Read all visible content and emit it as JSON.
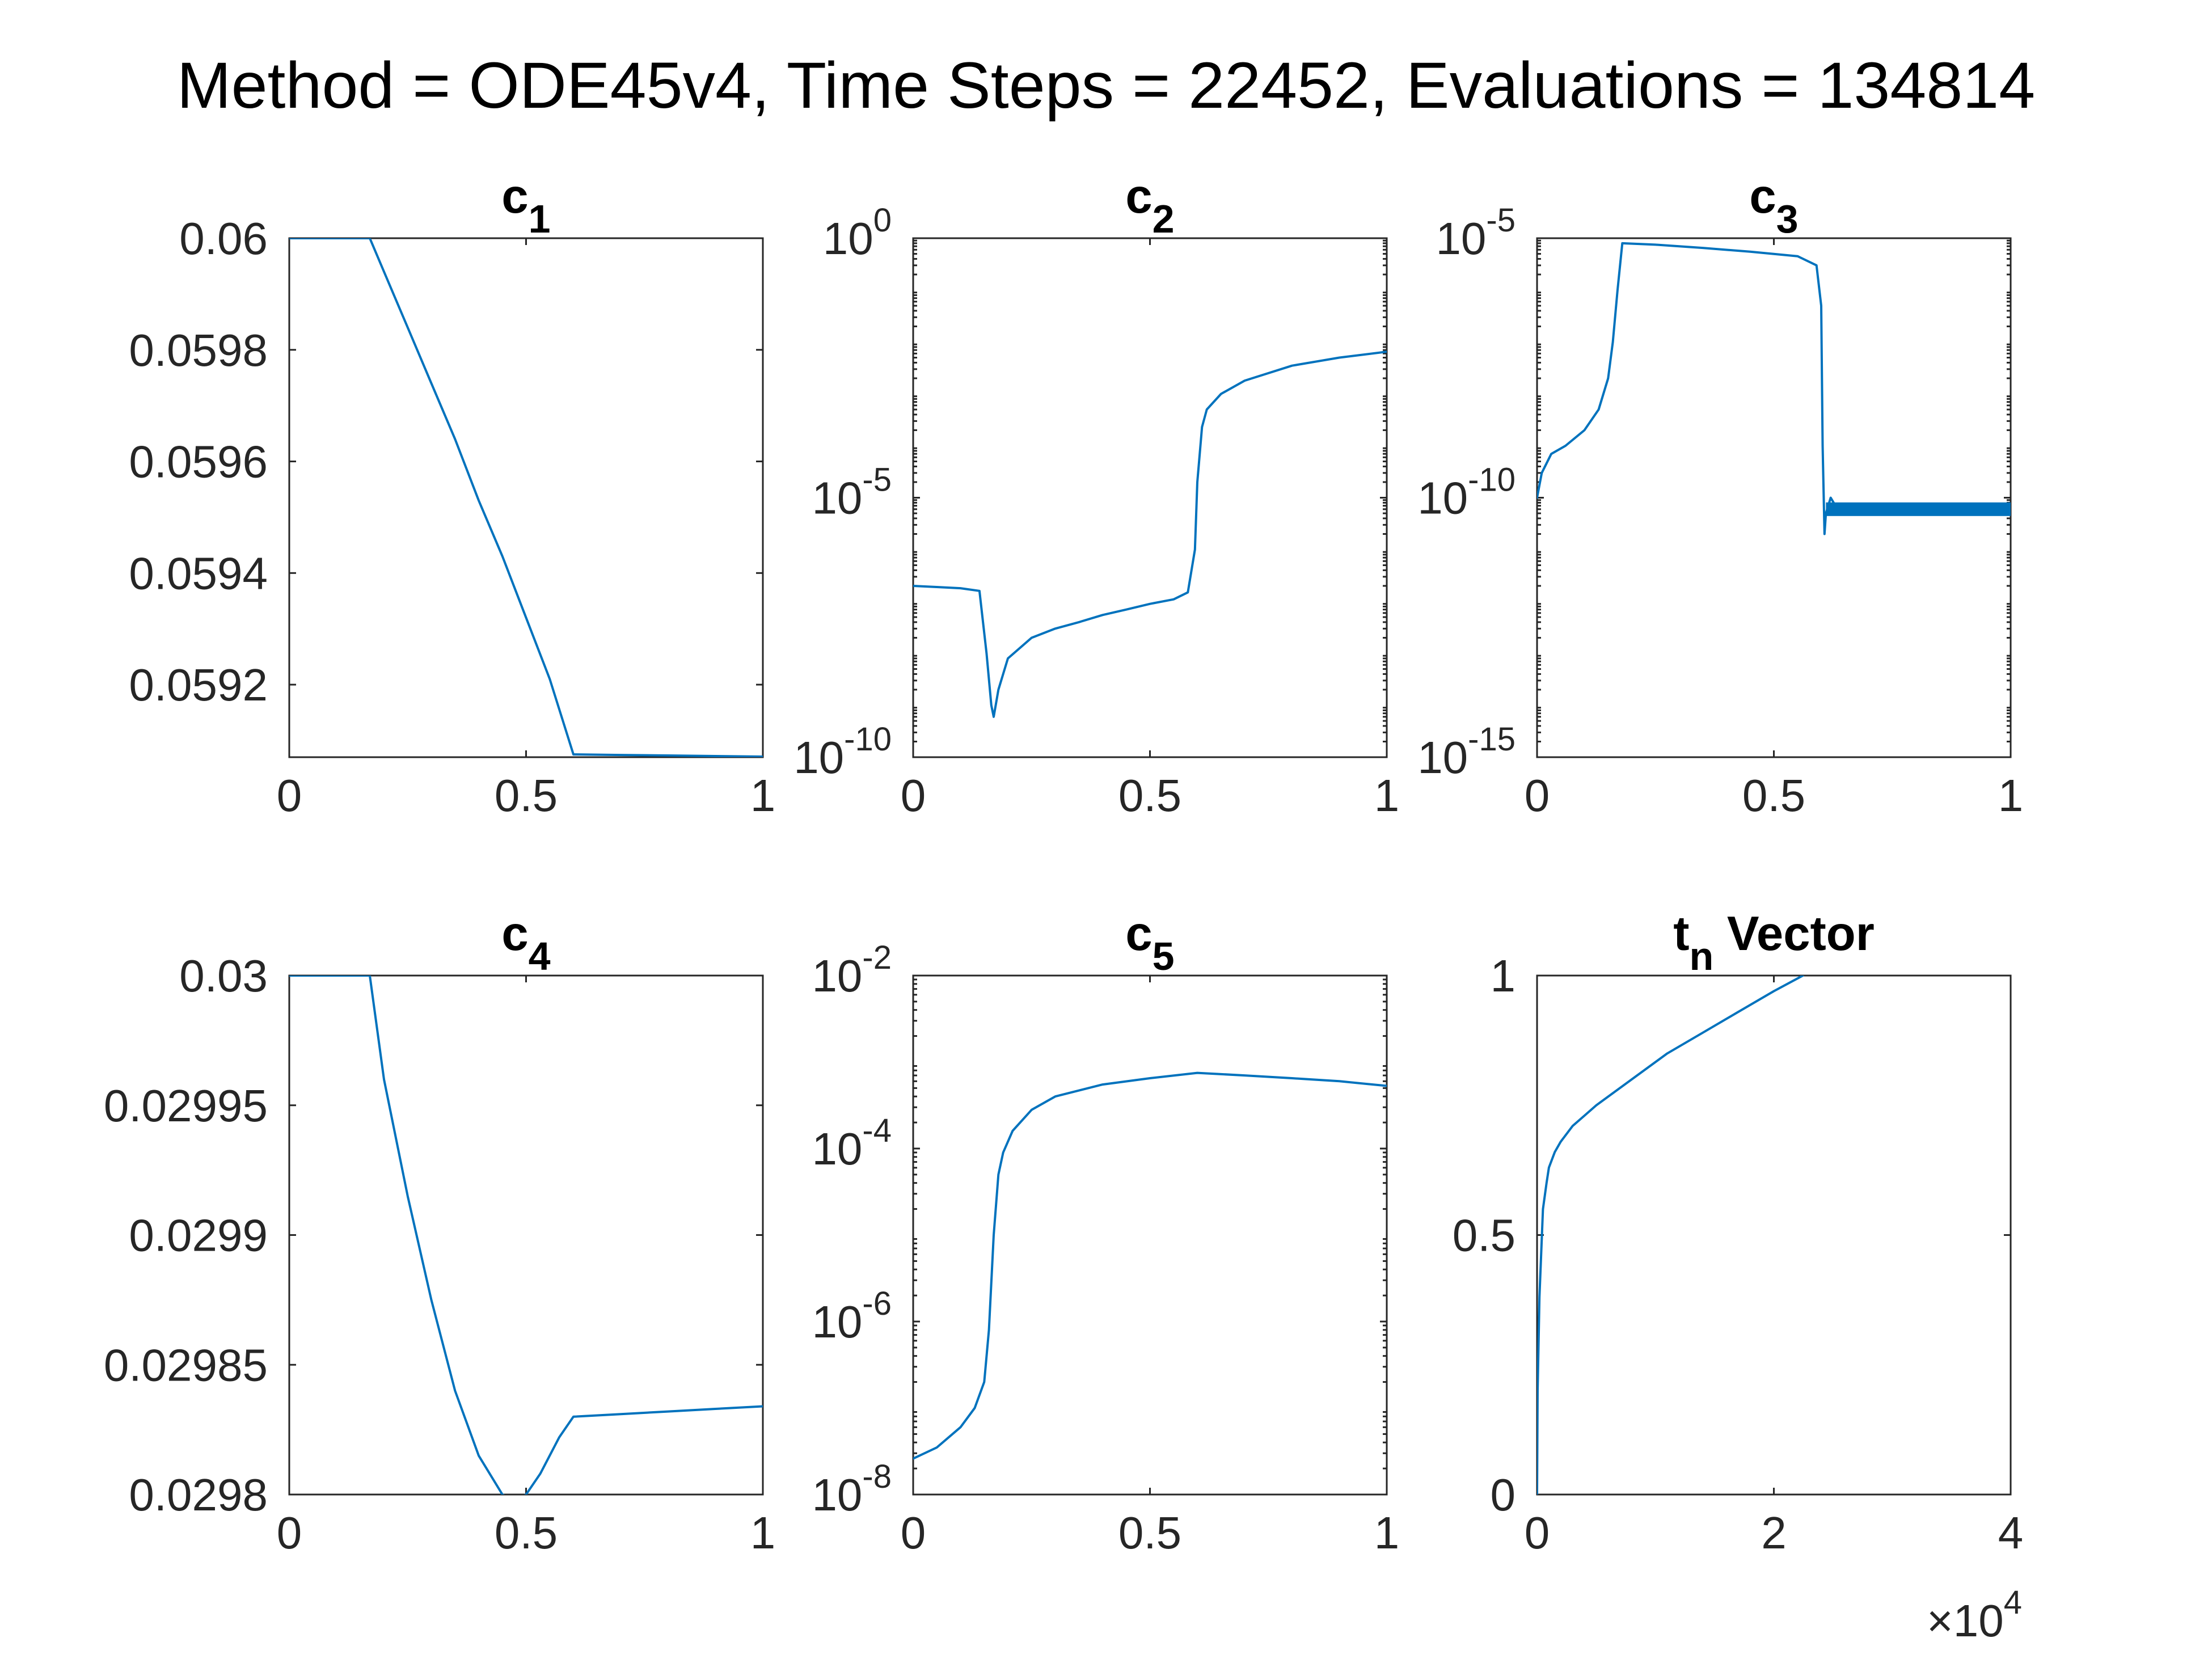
{
  "figure_title": "Method = ODE45v4, Time Steps = 22452, Evaluations = 134814",
  "line_color": "#0072BD",
  "chart_data": [
    {
      "type": "line",
      "title": {
        "main": "c",
        "sub": "1",
        "rest": ""
      },
      "x_scale": "linear",
      "y_scale": "linear",
      "xlim": [
        0,
        1
      ],
      "ylim": [
        0.05907,
        0.06
      ],
      "x_ticks": [
        {
          "v": 0,
          "label": "0"
        },
        {
          "v": 0.5,
          "label": "0.5"
        },
        {
          "v": 1,
          "label": "1"
        }
      ],
      "y_ticks": [
        {
          "v": 0.06,
          "label": "0.06"
        },
        {
          "v": 0.0598,
          "label": "0.0598"
        },
        {
          "v": 0.0596,
          "label": "0.0596"
        },
        {
          "v": 0.0594,
          "label": "0.0594"
        },
        {
          "v": 0.0592,
          "label": "0.0592"
        }
      ],
      "x_multiplier": null,
      "series": [
        {
          "x": [
            0,
            0.17,
            0.2,
            0.25,
            0.3,
            0.35,
            0.4,
            0.45,
            0.5,
            0.55,
            0.6,
            0.7,
            0.8,
            0.9,
            1.0
          ],
          "y": [
            0.06,
            0.06,
            0.05994,
            0.05984,
            0.05974,
            0.05964,
            0.05953,
            0.05943,
            0.05932,
            0.05921,
            0.059075,
            0.059074,
            0.059073,
            0.059072,
            0.059071
          ]
        }
      ]
    },
    {
      "type": "line",
      "title": {
        "main": "c",
        "sub": "2",
        "rest": ""
      },
      "x_scale": "linear",
      "y_scale": "log",
      "xlim": [
        0,
        1
      ],
      "ylim": [
        1e-10,
        1
      ],
      "x_ticks": [
        {
          "v": 0,
          "label": "0"
        },
        {
          "v": 0.5,
          "label": "0.5"
        },
        {
          "v": 1,
          "label": "1"
        }
      ],
      "y_ticks": [
        {
          "v": 1,
          "label": "10",
          "exp": "0"
        },
        {
          "v": 1e-05,
          "label": "10",
          "exp": "-5"
        },
        {
          "v": 1e-10,
          "label": "10",
          "exp": "-10"
        }
      ],
      "x_multiplier": null,
      "series": [
        {
          "x": [
            0,
            0.05,
            0.1,
            0.14,
            0.155,
            0.165,
            0.17,
            0.18,
            0.2,
            0.25,
            0.3,
            0.35,
            0.4,
            0.45,
            0.5,
            0.55,
            0.58,
            0.595,
            0.6,
            0.61,
            0.62,
            0.65,
            0.7,
            0.8,
            0.9,
            1.0
          ],
          "y": [
            2e-07,
            1.9e-07,
            1.8e-07,
            1.6e-07,
            1e-08,
            1e-09,
            6e-10,
            2e-09,
            8e-09,
            2e-08,
            3e-08,
            4e-08,
            5.5e-08,
            7e-08,
            9e-08,
            1.1e-07,
            1.5e-07,
            1e-06,
            2e-05,
            0.00023,
            0.0005,
            0.001,
            0.0018,
            0.0035,
            0.005,
            0.0065
          ]
        }
      ]
    },
    {
      "type": "line",
      "title": {
        "main": "c",
        "sub": "3",
        "rest": ""
      },
      "x_scale": "linear",
      "y_scale": "log",
      "xlim": [
        0,
        1
      ],
      "ylim": [
        1e-15,
        1e-05
      ],
      "x_ticks": [
        {
          "v": 0,
          "label": "0"
        },
        {
          "v": 0.5,
          "label": "0.5"
        },
        {
          "v": 1,
          "label": "1"
        }
      ],
      "y_ticks": [
        {
          "v": 1e-05,
          "label": "10",
          "exp": "-5"
        },
        {
          "v": 1e-10,
          "label": "10",
          "exp": "-10"
        },
        {
          "v": 1e-15,
          "label": "10",
          "exp": "-15"
        }
      ],
      "x_multiplier": null,
      "series": [
        {
          "x": [
            0,
            0.01,
            0.03,
            0.06,
            0.1,
            0.13,
            0.15,
            0.16,
            0.17,
            0.18,
            0.25,
            0.35,
            0.45,
            0.55,
            0.59,
            0.6,
            0.603,
            0.607,
            0.61,
            0.62,
            0.63,
            0.65,
            0.7,
            0.8,
            0.9,
            1.0
          ],
          "y": [
            1e-10,
            3e-10,
            7e-10,
            1e-09,
            2e-09,
            5e-09,
            2e-08,
            1e-07,
            1e-06,
            8e-06,
            7.5e-06,
            6.5e-06,
            5.5e-06,
            4.5e-06,
            3e-06,
            5e-07,
            1e-09,
            2e-11,
            5e-11,
            1e-10,
            7e-11,
            6e-11,
            6e-11,
            6e-11,
            6e-11,
            6e-11
          ]
        }
      ]
    },
    {
      "type": "line",
      "title": {
        "main": "c",
        "sub": "4",
        "rest": ""
      },
      "x_scale": "linear",
      "y_scale": "linear",
      "xlim": [
        0,
        1
      ],
      "ylim": [
        0.0298,
        0.03
      ],
      "x_ticks": [
        {
          "v": 0,
          "label": "0"
        },
        {
          "v": 0.5,
          "label": "0.5"
        },
        {
          "v": 1,
          "label": "1"
        }
      ],
      "y_ticks": [
        {
          "v": 0.03,
          "label": "0.03"
        },
        {
          "v": 0.02995,
          "label": "0.02995"
        },
        {
          "v": 0.0299,
          "label": "0.0299"
        },
        {
          "v": 0.02985,
          "label": "0.02985"
        },
        {
          "v": 0.0298,
          "label": "0.0298"
        }
      ],
      "x_multiplier": null,
      "series": [
        {
          "x": [
            0,
            0.17,
            0.2,
            0.25,
            0.3,
            0.35,
            0.4,
            0.45,
            0.48,
            0.5,
            0.53,
            0.57,
            0.6,
            0.7,
            0.8,
            0.9,
            1.0
          ],
          "y": [
            0.03,
            0.03,
            0.02996,
            0.029915,
            0.029875,
            0.02984,
            0.029815,
            0.0298,
            0.029797,
            0.0298,
            0.029808,
            0.029822,
            0.02983,
            0.029831,
            0.029832,
            0.029833,
            0.029834
          ]
        }
      ]
    },
    {
      "type": "line",
      "title": {
        "main": "c",
        "sub": "5",
        "rest": ""
      },
      "x_scale": "linear",
      "y_scale": "log",
      "xlim": [
        0,
        1
      ],
      "ylim": [
        1e-08,
        0.01
      ],
      "x_ticks": [
        {
          "v": 0,
          "label": "0"
        },
        {
          "v": 0.5,
          "label": "0.5"
        },
        {
          "v": 1,
          "label": "1"
        }
      ],
      "y_ticks": [
        {
          "v": 0.01,
          "label": "10",
          "exp": "-2"
        },
        {
          "v": 0.0001,
          "label": "10",
          "exp": "-4"
        },
        {
          "v": 1e-06,
          "label": "10",
          "exp": "-6"
        },
        {
          "v": 1e-08,
          "label": "10",
          "exp": "-8"
        }
      ],
      "x_multiplier": null,
      "series": [
        {
          "x": [
            0,
            0.05,
            0.1,
            0.13,
            0.15,
            0.16,
            0.17,
            0.18,
            0.19,
            0.21,
            0.25,
            0.3,
            0.4,
            0.5,
            0.6,
            0.7,
            0.8,
            0.9,
            1.0
          ],
          "y": [
            2.6e-08,
            3.5e-08,
            6e-08,
            1e-07,
            2e-07,
            8e-07,
            1e-05,
            5e-05,
            9e-05,
            0.00016,
            0.00028,
            0.0004,
            0.00055,
            0.00065,
            0.00075,
            0.0007,
            0.00065,
            0.0006,
            0.00053
          ]
        }
      ]
    },
    {
      "type": "line",
      "title": {
        "main": "t",
        "sub": "n",
        "rest": " Vector"
      },
      "x_scale": "linear",
      "y_scale": "linear",
      "xlim": [
        0,
        40000
      ],
      "ylim": [
        0,
        1
      ],
      "x_ticks": [
        {
          "v": 0,
          "label": "0"
        },
        {
          "v": 20000,
          "label": "2"
        },
        {
          "v": 40000,
          "label": "4"
        }
      ],
      "y_ticks": [
        {
          "v": 1,
          "label": "1"
        },
        {
          "v": 0.5,
          "label": "0.5"
        },
        {
          "v": 0,
          "label": "0"
        }
      ],
      "x_multiplier": {
        "base": "×10",
        "exp": "4"
      },
      "series": [
        {
          "x": [
            0,
            50,
            200,
            500,
            800,
            1000,
            1500,
            2000,
            3000,
            5000,
            8000,
            11000,
            14000,
            17000,
            20000,
            22452
          ],
          "y": [
            0,
            0.2,
            0.38,
            0.55,
            0.6,
            0.63,
            0.66,
            0.68,
            0.71,
            0.75,
            0.8,
            0.85,
            0.89,
            0.93,
            0.97,
            1.0
          ]
        }
      ]
    }
  ]
}
